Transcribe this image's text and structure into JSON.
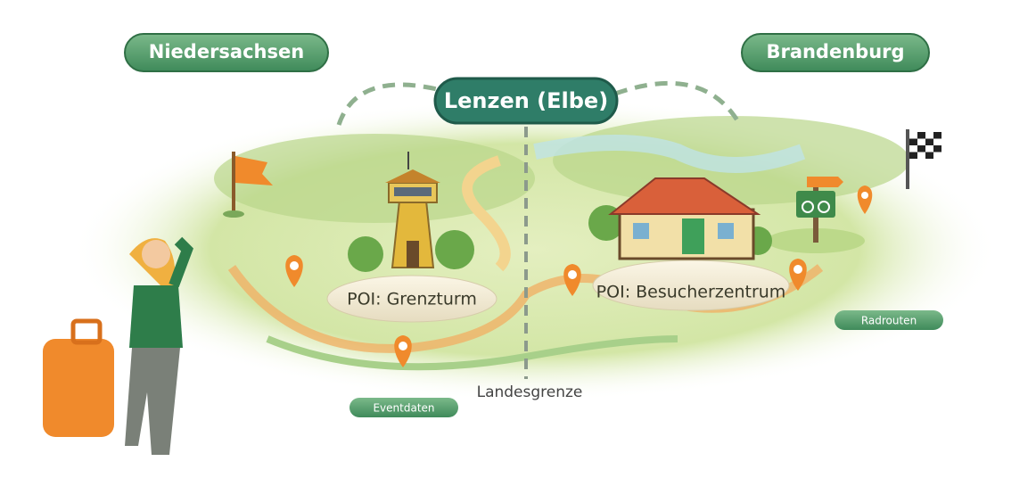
{
  "regions": {
    "left": "Niedersachsen",
    "right": "Brandenburg"
  },
  "town": "Lenzen (Elbe)",
  "pois": [
    "POI: Grenzturm",
    "POI: Besucherzentrum"
  ],
  "border": "Landesgrenze",
  "tags": [
    "Eventdaten",
    "Radrouten"
  ]
}
